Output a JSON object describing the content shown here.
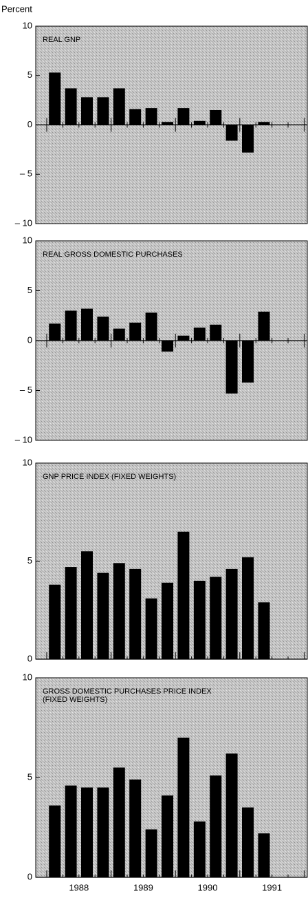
{
  "y_label": "Percent",
  "years": [
    "1988",
    "1989",
    "1990",
    "1991"
  ],
  "chart_data": [
    {
      "type": "bar",
      "title_lines": [
        "REAL GNP"
      ],
      "color": "#000000",
      "values": [
        5.3,
        3.7,
        2.8,
        2.8,
        3.7,
        1.6,
        1.7,
        0.3,
        1.7,
        0.4,
        1.5,
        -1.6,
        -2.8,
        0.3
      ],
      "ylim": [
        -10,
        10
      ],
      "yticks": [
        10,
        5,
        0,
        {
          "value": -5,
          "label": "– 5"
        },
        {
          "value": -10,
          "label": "– 10"
        }
      ]
    },
    {
      "type": "bar",
      "title_lines": [
        "REAL GROSS DOMESTIC PURCHASES"
      ],
      "color": "#000000",
      "values": [
        1.7,
        3.0,
        3.2,
        2.4,
        1.2,
        1.8,
        2.8,
        -1.1,
        0.5,
        1.3,
        1.6,
        -5.3,
        -4.2,
        2.9
      ],
      "ylim": [
        -10,
        10
      ],
      "yticks": [
        10,
        5,
        0,
        {
          "value": -5,
          "label": "– 5"
        },
        {
          "value": -10,
          "label": "– 10"
        }
      ]
    },
    {
      "type": "bar",
      "title_lines": [
        "GNP PRICE INDEX (FIXED WEIGHTS)"
      ],
      "color": "#000000",
      "values": [
        3.8,
        4.7,
        5.5,
        4.4,
        4.9,
        4.6,
        3.1,
        3.9,
        6.5,
        4.0,
        4.2,
        4.6,
        5.2,
        2.9
      ],
      "ylim": [
        0,
        10
      ],
      "yticks": [
        10,
        5,
        0
      ]
    },
    {
      "type": "bar",
      "title_lines": [
        "GROSS DOMESTIC PURCHASES PRICE INDEX",
        "(FIXED WEIGHTS)"
      ],
      "color": "#000000",
      "values": [
        3.6,
        4.6,
        4.5,
        4.5,
        5.5,
        4.9,
        2.4,
        4.1,
        7.0,
        2.8,
        5.1,
        6.2,
        3.5,
        2.2
      ],
      "ylim": [
        0,
        10
      ],
      "yticks": [
        10,
        5,
        0
      ]
    }
  ]
}
